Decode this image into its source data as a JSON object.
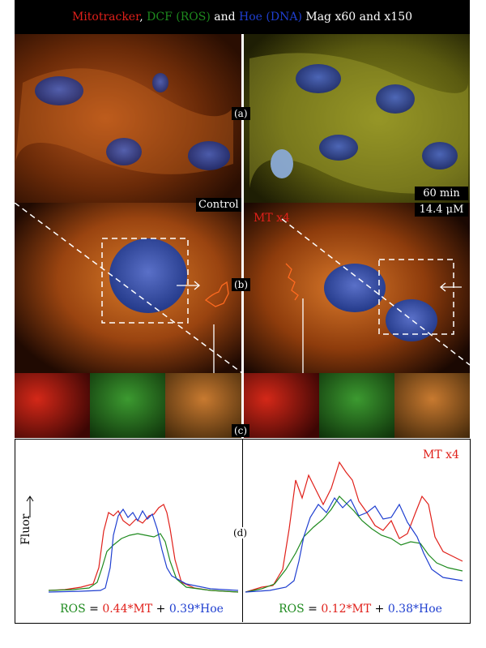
{
  "header": {
    "mitotracker": "Mitotracker",
    "sep1": ", ",
    "dcf": "DCF (ROS)",
    "and": " and ",
    "hoe": "Hoe (DNA)",
    "mag": " Mag x60 and x150"
  },
  "labels": {
    "a": "(a)",
    "b": "(b)",
    "c": "(c)",
    "d": "(d)",
    "control": "Control",
    "mt_left": "MT x4",
    "time": "60 min",
    "conc": "14.4 μM",
    "mt_graph": "MT x4",
    "fluor": "Fluor"
  },
  "equations": {
    "left": {
      "ros": "ROS",
      "eq": " = ",
      "c1": "0.44*",
      "mt": "MT",
      "plus": " + ",
      "c2": "0.39*",
      "hoe": "Hoe"
    },
    "right": {
      "ros": "ROS",
      "eq": " = ",
      "c1": "0.12*",
      "mt": "MT",
      "plus": " + ",
      "c2": "0.38*",
      "hoe": "Hoe"
    }
  },
  "colors": {
    "mito": "#e0201a",
    "dcf": "#1e8a1e",
    "hoe": "#1f3fd0"
  }
}
